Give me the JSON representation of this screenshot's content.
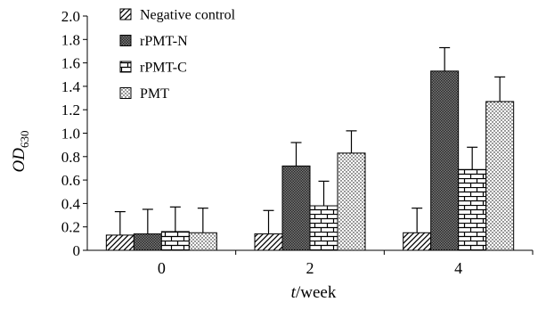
{
  "chart_data": {
    "type": "bar",
    "title": "",
    "xlabel": {
      "italic": "t",
      "rest": "/week"
    },
    "ylabel": {
      "italic": "OD",
      "sub": "630"
    },
    "categories": [
      "0",
      "2",
      "4"
    ],
    "ylim": [
      0,
      2.0
    ],
    "yticks": [
      "0",
      "0.2",
      "0.4",
      "0.6",
      "0.8",
      "1.0",
      "1.2",
      "1.4",
      "1.6",
      "1.8",
      "2.0"
    ],
    "grid": false,
    "legend_position": "top-left, inside plot",
    "error_bars": "upper only",
    "series": [
      {
        "name": "Negative control",
        "pattern": "diagonal-hatch",
        "values": [
          0.13,
          0.14,
          0.15
        ],
        "errors": [
          0.2,
          0.2,
          0.21
        ]
      },
      {
        "name": "rPMT-N",
        "pattern": "dense-crosshatch",
        "values": [
          0.14,
          0.72,
          1.53
        ],
        "errors": [
          0.21,
          0.2,
          0.2
        ]
      },
      {
        "name": "rPMT-C",
        "pattern": "brick",
        "values": [
          0.16,
          0.38,
          0.69
        ],
        "errors": [
          0.21,
          0.21,
          0.19
        ]
      },
      {
        "name": "PMT",
        "pattern": "dots",
        "values": [
          0.15,
          0.83,
          1.27
        ],
        "errors": [
          0.21,
          0.19,
          0.21
        ]
      }
    ]
  }
}
